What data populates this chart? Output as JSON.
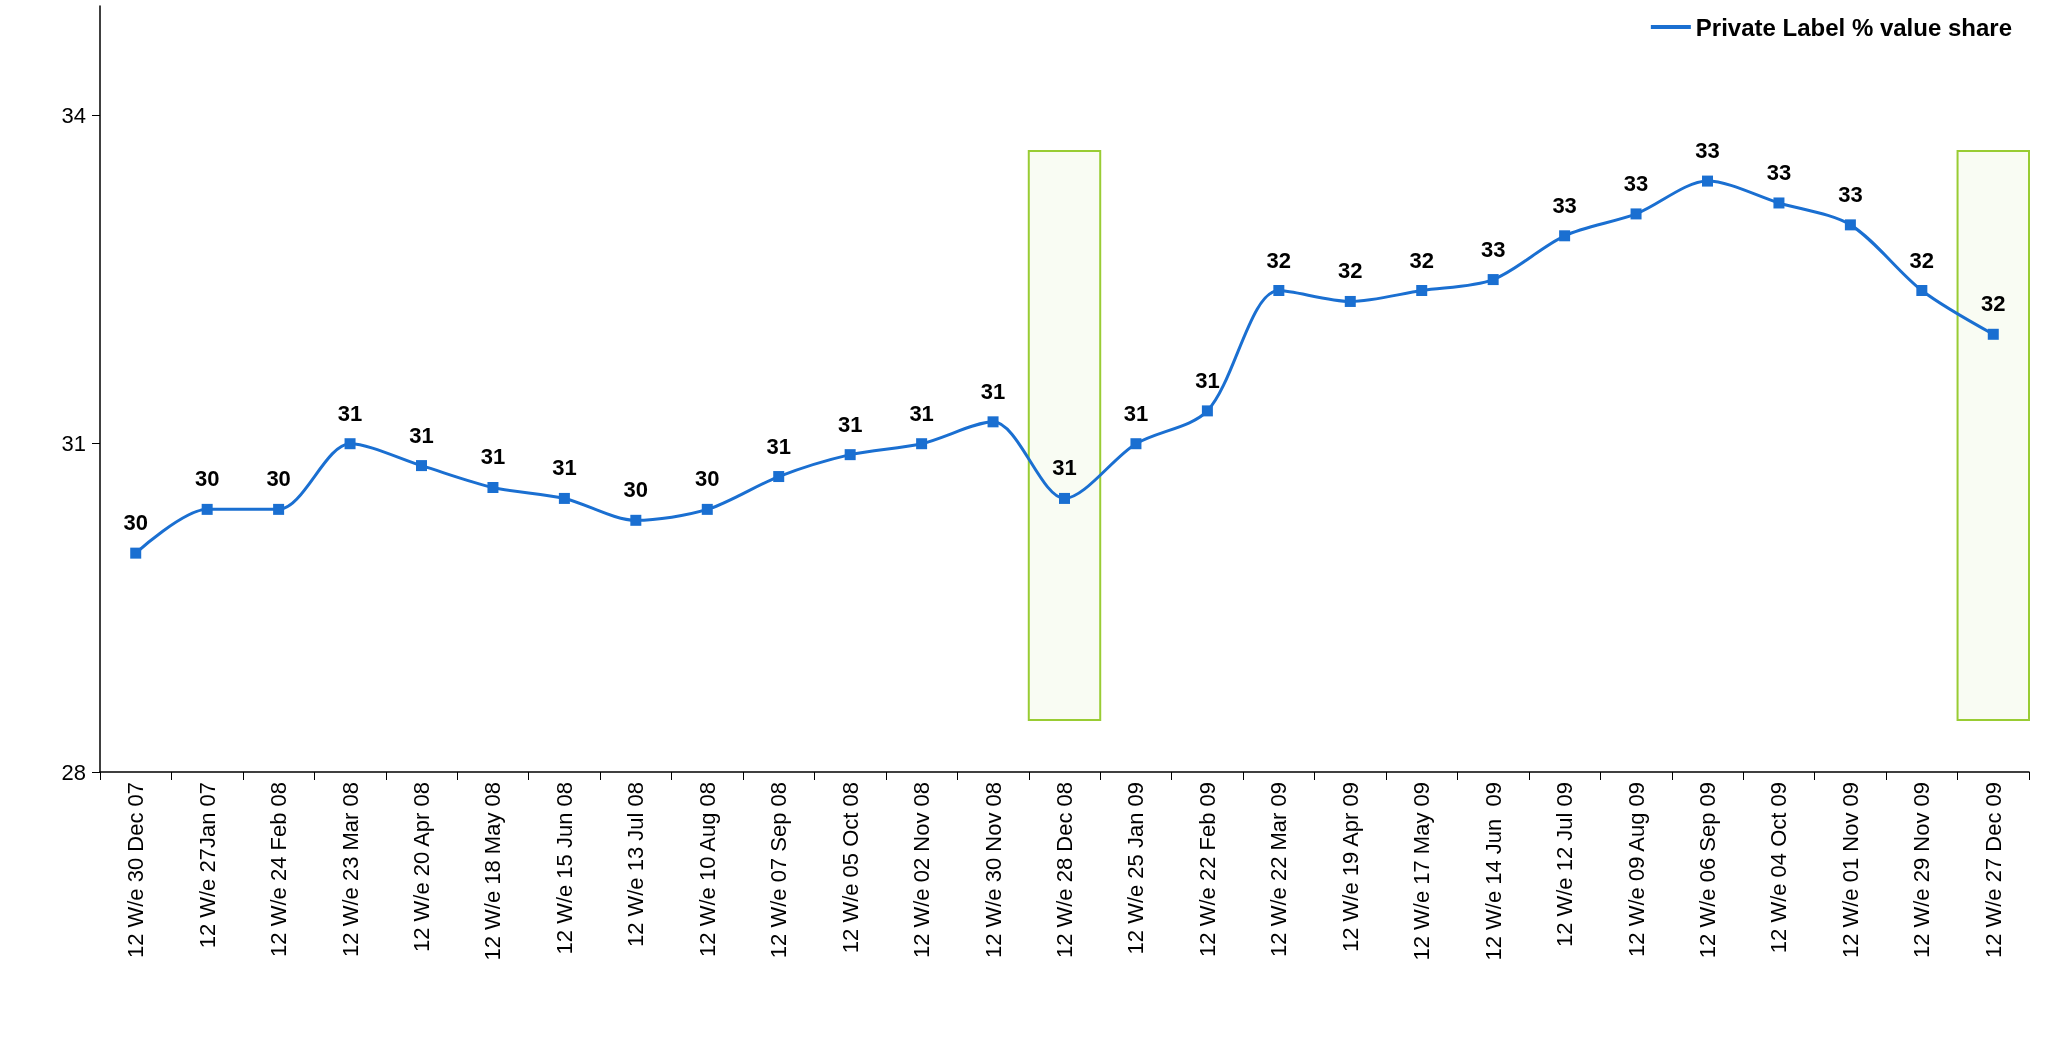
{
  "chart_data": {
    "type": "line",
    "categories": [
      "12 W/e 30 Dec 07",
      "12 W/e 27Jan 07",
      "12 W/e 24 Feb 08",
      "12 W/e 23 Mar 08",
      "12 W/e 20 Apr 08",
      "12 W/e 18 May 08",
      "12 W/e 15 Jun 08",
      "12 W/e 13 Jul 08",
      "12 W/e 10 Aug 08",
      "12 W/e 07 Sep 08",
      "12 W/e 05 Oct 08",
      "12 W/e 02 Nov 08",
      "12 W/e 30 Nov 08",
      "12 W/e 28 Dec 08",
      "12 W/e 25 Jan 09",
      "12 W/e 22 Feb 09",
      "12 W/e 22 Mar 09",
      "12 W/e 19 Apr 09",
      "12 W/e 17 May 09",
      "12 W/e 14 Jun  09",
      "12 W/e 12 Jul 09",
      "12 W/e 09 Aug 09",
      "12 W/e 06 Sep 09",
      "12 W/e 04 Oct 09",
      "12 W/e 01 Nov 09",
      "12 W/e 29 Nov 09",
      "12 W/e 27 Dec 09"
    ],
    "series": [
      {
        "name": "Private Label % value share",
        "color": "#1a6fd1",
        "values": [
          30.0,
          30.4,
          30.4,
          31.0,
          30.8,
          30.6,
          30.5,
          30.3,
          30.4,
          30.7,
          30.9,
          31.0,
          31.2,
          30.5,
          31.0,
          31.3,
          32.4,
          32.3,
          32.4,
          32.5,
          32.9,
          33.1,
          33.4,
          33.2,
          33.0,
          32.4,
          32.0
        ],
        "value_labels": [
          "30",
          "30",
          "30",
          "31",
          "31",
          "31",
          "31",
          "30",
          "30",
          "31",
          "31",
          "31",
          "31",
          "31",
          "31",
          "31",
          "32",
          "32",
          "32",
          "33",
          "33",
          "33",
          "33",
          "33",
          "33",
          "32",
          "32"
        ]
      }
    ],
    "ylim": [
      28,
      35
    ],
    "yticks": [
      28,
      31,
      34
    ],
    "grid": false,
    "legend": "top right",
    "marker": "square",
    "line_style": "solid",
    "bands": [
      {
        "axis": "x",
        "from": "12 W/e 28 Dec 08",
        "to": "12 W/e 28 Dec 08",
        "color": "#99cc33"
      },
      {
        "axis": "x",
        "from": "12 W/e 27 Dec 09",
        "to": "12 W/e 27 Dec 09",
        "color": "#99cc33"
      }
    ]
  }
}
